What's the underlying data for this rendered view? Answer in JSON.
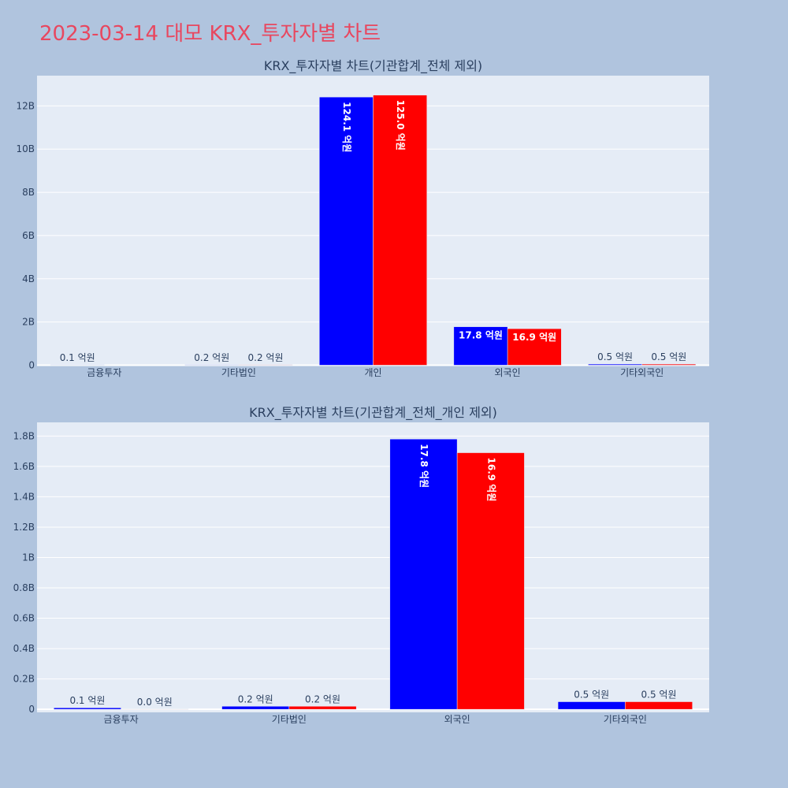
{
  "page": {
    "title": "2023-03-14 대모 KRX_투자자별 차트",
    "background": "#b0c4de",
    "title_color": "#e8475f",
    "plot_bg": "#e5ecf6"
  },
  "chart_data": [
    {
      "type": "bar",
      "title": "KRX_투자자별 차트(기관합계_전체 제외)",
      "categories": [
        "금융투자",
        "기타법인",
        "개인",
        "외국인",
        "기타외국인"
      ],
      "ylim": [
        -0.02,
        13.4
      ],
      "yticks": [
        0,
        2,
        4,
        6,
        8,
        10,
        12
      ],
      "ytick_labels": [
        "0",
        "2B",
        "4B",
        "6B",
        "8B",
        "10B",
        "12B"
      ],
      "grid": true,
      "series": [
        {
          "color": "#0000ff",
          "values": [
            0.01,
            0.02,
            12.41,
            1.78,
            0.05
          ],
          "labels": [
            "0.1 억원",
            "0.2 억원",
            "124.1 억원",
            "17.8 억원",
            "0.5 억원"
          ]
        },
        {
          "color": "#ff0000",
          "values": [
            null,
            0.02,
            12.5,
            1.69,
            0.05
          ],
          "labels": [
            "",
            "0.2 억원",
            "125.0 억원",
            "16.9 억원",
            "0.5 억원"
          ]
        }
      ]
    },
    {
      "type": "bar",
      "title": "KRX_투자자별 차트(기관합계_전체_개인 제외)",
      "categories": [
        "금융투자",
        "기타법인",
        "외국인",
        "기타외국인"
      ],
      "ylim": [
        -0.02,
        1.89
      ],
      "yticks": [
        0,
        0.2,
        0.4,
        0.6,
        0.8,
        1.0,
        1.2,
        1.4,
        1.6,
        1.8
      ],
      "ytick_labels": [
        "0",
        "0.2B",
        "0.4B",
        "0.6B",
        "0.8B",
        "1B",
        "1.2B",
        "1.4B",
        "1.6B",
        "1.8B"
      ],
      "grid": true,
      "series": [
        {
          "color": "#0000ff",
          "values": [
            0.01,
            0.02,
            1.78,
            0.05
          ],
          "labels": [
            "0.1 억원",
            "0.2 억원",
            "17.8 억원",
            "0.5 억원"
          ]
        },
        {
          "color": "#ff0000",
          "values": [
            0.0,
            0.02,
            1.69,
            0.05
          ],
          "labels": [
            "0.0 억원",
            "0.2 억원",
            "16.9 억원",
            "0.5 억원"
          ]
        }
      ]
    }
  ]
}
